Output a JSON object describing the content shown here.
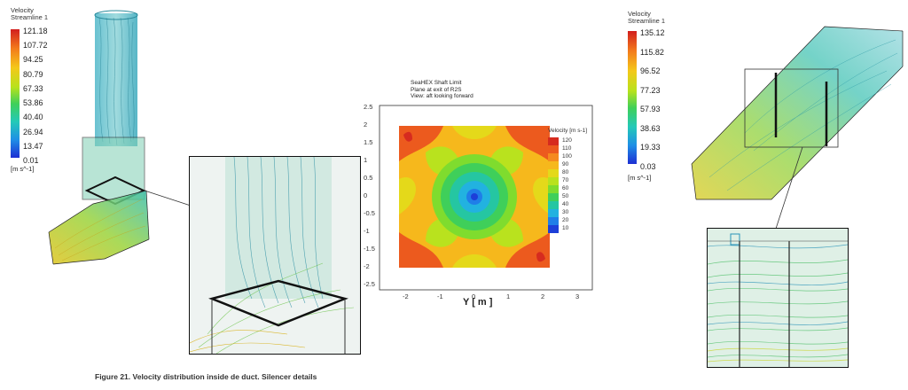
{
  "left_legend": {
    "title_line1": "Velocity",
    "title_line2": "Streamline 1",
    "ticks": [
      "121.18",
      "107.72",
      "94.25",
      "80.79",
      "67.33",
      "53.86",
      "40.40",
      "26.94",
      "13.47",
      "0.01"
    ],
    "unit": "[m s^-1]"
  },
  "right_legend": {
    "title_line1": "Velocity",
    "title_line2": "Streamline 1",
    "ticks": [
      "135.12",
      "115.82",
      "96.52",
      "77.23",
      "57.93",
      "38.63",
      "19.33",
      "0.03"
    ],
    "unit": "[m s^-1]"
  },
  "center_plot": {
    "title_lines": [
      "SeaHEX Shaft Limit",
      "Plane at exit of R2S",
      "View: aft looking forward"
    ],
    "legend_title": "Velocity [m s-1]",
    "legend_values": [
      "120",
      "110",
      "100",
      "90",
      "80",
      "70",
      "60",
      "50",
      "40",
      "30",
      "20",
      "10"
    ],
    "legend_colors": [
      "#d62b1f",
      "#ec5a1e",
      "#f58a1e",
      "#f6b81c",
      "#e4d91a",
      "#b9e21e",
      "#7fdc2e",
      "#3fcf5a",
      "#25c6a2",
      "#22b2e0",
      "#1f7ee8",
      "#1d3fd8"
    ],
    "y_ticks": [
      "2.5",
      "2",
      "1.5",
      "1",
      "0.5",
      "0",
      "-0.5",
      "-1",
      "-1.5",
      "-2",
      "-2.5"
    ],
    "x_ticks": [
      "-2",
      "-1",
      "0",
      "1",
      "2",
      "3"
    ],
    "x_label": "Y [ m ]"
  },
  "caption": "Figure 21. Velocity distribution inside de duct. Silencer details"
}
